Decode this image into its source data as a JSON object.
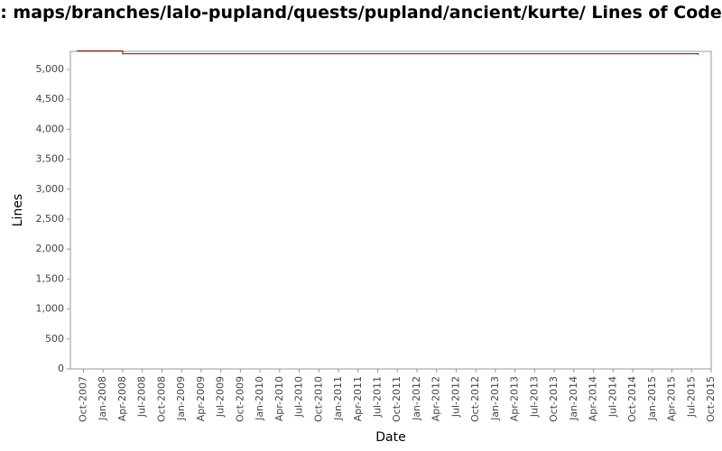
{
  "chart_data": {
    "type": "line",
    "title": ": maps/branches/lalo-pupland/quests/pupland/ancient/kurte/ Lines of Code",
    "x_label": "Date",
    "y_label": "Lines",
    "x": [
      "2007-09",
      "2008-04",
      "2008-04",
      "2015-08",
      "2015-08"
    ],
    "series": [
      {
        "name": "Lines",
        "color": "#8b0000",
        "values": [
          5310,
          5310,
          5260,
          5260,
          5240
        ]
      }
    ],
    "xlim": [
      "2007-08",
      "2015-10"
    ],
    "xticks": [
      {
        "value": "2007-10",
        "label": "Oct-2007"
      },
      {
        "value": "2008-01",
        "label": "Jan-2008"
      },
      {
        "value": "2008-04",
        "label": "Apr-2008"
      },
      {
        "value": "2008-07",
        "label": "Jul-2008"
      },
      {
        "value": "2008-10",
        "label": "Oct-2008"
      },
      {
        "value": "2009-01",
        "label": "Jan-2009"
      },
      {
        "value": "2009-04",
        "label": "Apr-2009"
      },
      {
        "value": "2009-07",
        "label": "Jul-2009"
      },
      {
        "value": "2009-10",
        "label": "Oct-2009"
      },
      {
        "value": "2010-01",
        "label": "Jan-2010"
      },
      {
        "value": "2010-04",
        "label": "Apr-2010"
      },
      {
        "value": "2010-07",
        "label": "Jul-2010"
      },
      {
        "value": "2010-10",
        "label": "Oct-2010"
      },
      {
        "value": "2011-01",
        "label": "Jan-2011"
      },
      {
        "value": "2011-04",
        "label": "Apr-2011"
      },
      {
        "value": "2011-07",
        "label": "Jul-2011"
      },
      {
        "value": "2011-10",
        "label": "Oct-2011"
      },
      {
        "value": "2012-01",
        "label": "Jan-2012"
      },
      {
        "value": "2012-04",
        "label": "Apr-2012"
      },
      {
        "value": "2012-07",
        "label": "Jul-2012"
      },
      {
        "value": "2012-10",
        "label": "Oct-2012"
      },
      {
        "value": "2013-01",
        "label": "Jan-2013"
      },
      {
        "value": "2013-04",
        "label": "Apr-2013"
      },
      {
        "value": "2013-07",
        "label": "Jul-2013"
      },
      {
        "value": "2013-10",
        "label": "Oct-2013"
      },
      {
        "value": "2014-01",
        "label": "Jan-2014"
      },
      {
        "value": "2014-04",
        "label": "Apr-2014"
      },
      {
        "value": "2014-07",
        "label": "Jul-2014"
      },
      {
        "value": "2014-10",
        "label": "Oct-2014"
      },
      {
        "value": "2015-01",
        "label": "Jan-2015"
      },
      {
        "value": "2015-04",
        "label": "Apr-2015"
      },
      {
        "value": "2015-07",
        "label": "Jul-2015"
      },
      {
        "value": "2015-10",
        "label": "Oct-2015"
      }
    ],
    "ylim": [
      0,
      5300
    ],
    "yticks": [
      0,
      500,
      {
        "value": 1000,
        "label": "1,000"
      },
      {
        "value": 1500,
        "label": "1,500"
      },
      {
        "value": 2000,
        "label": "2,000"
      },
      {
        "value": 2500,
        "label": "2,500"
      },
      {
        "value": 3000,
        "label": "3,000"
      },
      {
        "value": 3500,
        "label": "3,500"
      },
      {
        "value": 4000,
        "label": "4,000"
      },
      {
        "value": 4500,
        "label": "4,500"
      },
      {
        "value": 5000,
        "label": "5,000"
      }
    ],
    "grid": false
  }
}
